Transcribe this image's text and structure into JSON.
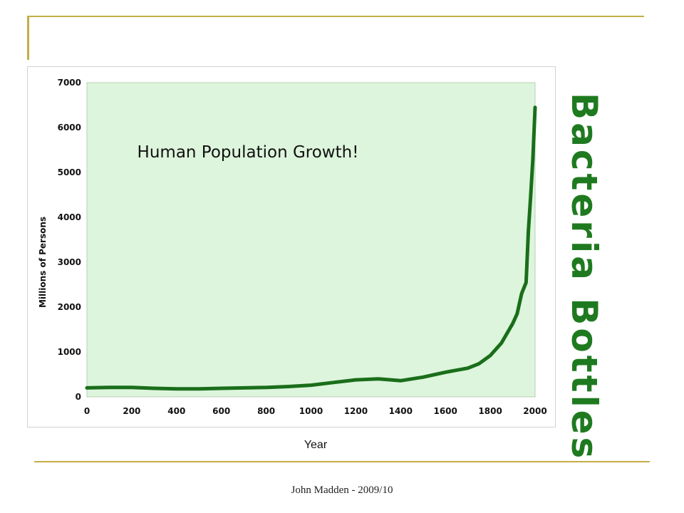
{
  "slide": {
    "side_title": "Bacteria Bottles",
    "footer": "John Madden - 2009/10",
    "colors": {
      "accent_rule": "#c4ae46",
      "title_green": "#1f7a1f"
    }
  },
  "chart_data": {
    "type": "line",
    "title": "Human Population Growth!",
    "xlabel": "Year",
    "ylabel": "Millions of Persons",
    "xlim": [
      0,
      2000
    ],
    "ylim": [
      0,
      7000
    ],
    "xticks": [
      0,
      200,
      400,
      600,
      800,
      1000,
      1200,
      1400,
      1600,
      1800,
      2000
    ],
    "yticks": [
      0,
      1000,
      2000,
      3000,
      4000,
      5000,
      6000,
      7000
    ],
    "grid": false,
    "plot_background": "#ddf5dc",
    "line_color": "#1a6e1a",
    "series": [
      {
        "x": [
          0,
          100,
          200,
          300,
          400,
          500,
          600,
          700,
          800,
          900,
          1000,
          1100,
          1200,
          1300,
          1400,
          1500,
          1600,
          1700,
          1750,
          1800,
          1850,
          1900,
          1920,
          1940,
          1960,
          1970,
          1980,
          1990,
          2000
        ],
        "values": [
          200,
          210,
          210,
          190,
          180,
          180,
          190,
          200,
          210,
          230,
          260,
          320,
          380,
          400,
          360,
          440,
          550,
          640,
          740,
          920,
          1200,
          1630,
          1850,
          2300,
          2550,
          3700,
          4450,
          5300,
          6450
        ]
      }
    ]
  }
}
